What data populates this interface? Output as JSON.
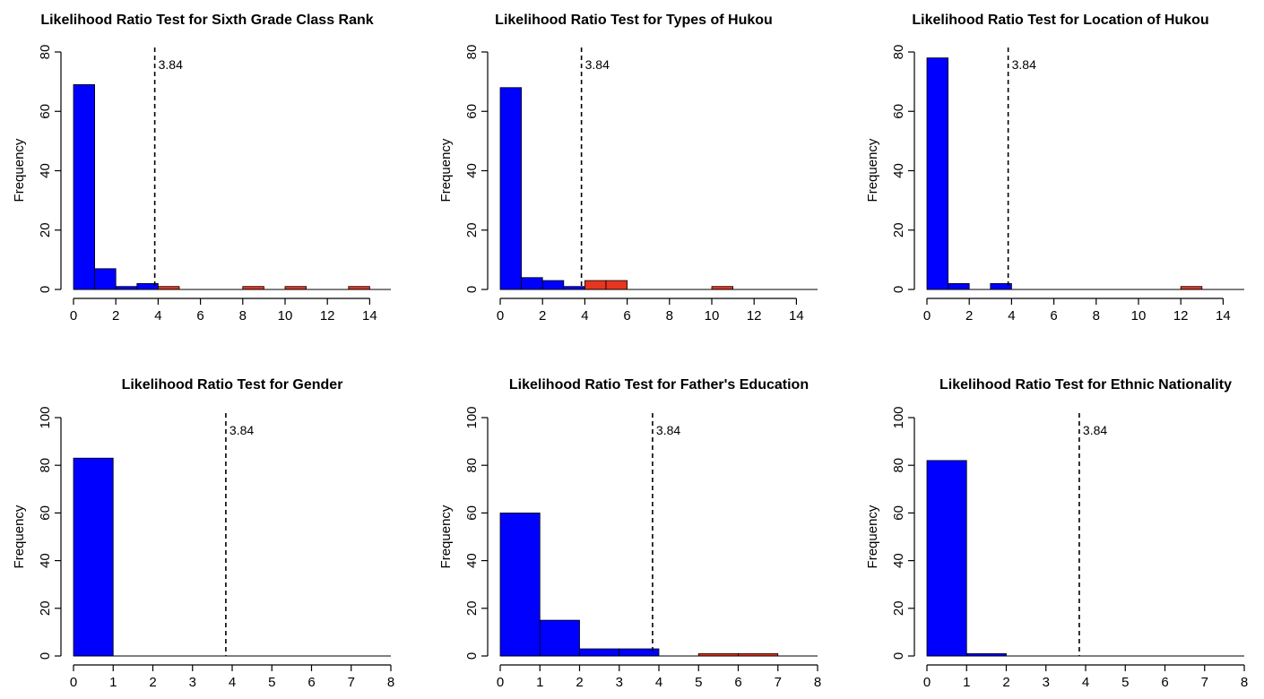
{
  "chart_data": [
    {
      "type": "bar",
      "title": "Likelihood Ratio Test for Sixth Grade Class Rank",
      "xlabel": "",
      "ylabel": "Frequency",
      "xlim": [
        0,
        15
      ],
      "ylim": [
        0,
        80
      ],
      "xticks": [
        "0",
        "2",
        "4",
        "6",
        "8",
        "10",
        "12",
        "14"
      ],
      "yticks": [
        "0",
        "20",
        "40",
        "60",
        "80"
      ],
      "bin_width": 1,
      "bins": [
        {
          "x0": 0,
          "x1": 1,
          "count": 69,
          "color": "blue"
        },
        {
          "x0": 1,
          "x1": 2,
          "count": 7,
          "color": "blue"
        },
        {
          "x0": 2,
          "x1": 3,
          "count": 1,
          "color": "blue"
        },
        {
          "x0": 3,
          "x1": 4,
          "count": 2,
          "color": "blue"
        },
        {
          "x0": 4,
          "x1": 5,
          "count": 1,
          "color": "red"
        },
        {
          "x0": 8,
          "x1": 9,
          "count": 1,
          "color": "red"
        },
        {
          "x0": 10,
          "x1": 11,
          "count": 1,
          "color": "red"
        },
        {
          "x0": 13,
          "x1": 14,
          "count": 1,
          "color": "red"
        }
      ],
      "critical_value": 3.84,
      "critical_label": "3.84"
    },
    {
      "type": "bar",
      "title": "Likelihood Ratio Test for Types of Hukou",
      "xlabel": "",
      "ylabel": "Frequency",
      "xlim": [
        0,
        15
      ],
      "ylim": [
        0,
        80
      ],
      "xticks": [
        "0",
        "2",
        "4",
        "6",
        "8",
        "10",
        "12",
        "14"
      ],
      "yticks": [
        "0",
        "20",
        "40",
        "60",
        "80"
      ],
      "bin_width": 1,
      "bins": [
        {
          "x0": 0,
          "x1": 1,
          "count": 68,
          "color": "blue"
        },
        {
          "x0": 1,
          "x1": 2,
          "count": 4,
          "color": "blue"
        },
        {
          "x0": 2,
          "x1": 3,
          "count": 3,
          "color": "blue"
        },
        {
          "x0": 3,
          "x1": 4,
          "count": 1,
          "color": "blue"
        },
        {
          "x0": 4,
          "x1": 5,
          "count": 3,
          "color": "red"
        },
        {
          "x0": 5,
          "x1": 6,
          "count": 3,
          "color": "red"
        },
        {
          "x0": 10,
          "x1": 11,
          "count": 1,
          "color": "red"
        }
      ],
      "critical_value": 3.84,
      "critical_label": "3.84"
    },
    {
      "type": "bar",
      "title": "Likelihood Ratio Test for Location of Hukou",
      "xlabel": "",
      "ylabel": "Frequency",
      "xlim": [
        0,
        15
      ],
      "ylim": [
        0,
        80
      ],
      "xticks": [
        "0",
        "2",
        "4",
        "6",
        "8",
        "10",
        "12",
        "14"
      ],
      "yticks": [
        "0",
        "20",
        "40",
        "60",
        "80"
      ],
      "bin_width": 1,
      "bins": [
        {
          "x0": 0,
          "x1": 1,
          "count": 78,
          "color": "blue"
        },
        {
          "x0": 1,
          "x1": 2,
          "count": 2,
          "color": "blue"
        },
        {
          "x0": 3,
          "x1": 4,
          "count": 2,
          "color": "blue"
        },
        {
          "x0": 12,
          "x1": 13,
          "count": 1,
          "color": "red"
        }
      ],
      "critical_value": 3.84,
      "critical_label": "3.84"
    },
    {
      "type": "bar",
      "title": "Likelihood Ratio Test for Gender",
      "xlabel": "",
      "ylabel": "Frequency",
      "xlim": [
        0,
        8
      ],
      "ylim": [
        0,
        100
      ],
      "xticks": [
        "0",
        "1",
        "2",
        "3",
        "4",
        "5",
        "6",
        "7",
        "8"
      ],
      "yticks": [
        "0",
        "20",
        "40",
        "60",
        "80",
        "100"
      ],
      "bin_width": 1,
      "bins": [
        {
          "x0": 0,
          "x1": 1,
          "count": 83,
          "color": "blue"
        }
      ],
      "critical_value": 3.84,
      "critical_label": "3.84"
    },
    {
      "type": "bar",
      "title": "Likelihood Ratio Test for Father's Education",
      "xlabel": "",
      "ylabel": "Frequency",
      "xlim": [
        0,
        8
      ],
      "ylim": [
        0,
        100
      ],
      "xticks": [
        "0",
        "1",
        "2",
        "3",
        "4",
        "5",
        "6",
        "7",
        "8"
      ],
      "yticks": [
        "0",
        "20",
        "40",
        "60",
        "80",
        "100"
      ],
      "bin_width": 1,
      "bins": [
        {
          "x0": 0,
          "x1": 1,
          "count": 60,
          "color": "blue"
        },
        {
          "x0": 1,
          "x1": 2,
          "count": 15,
          "color": "blue"
        },
        {
          "x0": 2,
          "x1": 3,
          "count": 3,
          "color": "blue"
        },
        {
          "x0": 3,
          "x1": 4,
          "count": 3,
          "color": "blue"
        },
        {
          "x0": 5,
          "x1": 6,
          "count": 1,
          "color": "red"
        },
        {
          "x0": 6,
          "x1": 7,
          "count": 1,
          "color": "red"
        }
      ],
      "critical_value": 3.84,
      "critical_label": "3.84"
    },
    {
      "type": "bar",
      "title": "Likelihood Ratio Test for Ethnic Nationality",
      "xlabel": "",
      "ylabel": "Frequency",
      "xlim": [
        0,
        8
      ],
      "ylim": [
        0,
        100
      ],
      "xticks": [
        "0",
        "1",
        "2",
        "3",
        "4",
        "5",
        "6",
        "7",
        "8"
      ],
      "yticks": [
        "0",
        "20",
        "40",
        "60",
        "80",
        "100"
      ],
      "bin_width": 1,
      "bins": [
        {
          "x0": 0,
          "x1": 1,
          "count": 82,
          "color": "blue"
        },
        {
          "x0": 1,
          "x1": 2,
          "count": 1,
          "color": "blue"
        }
      ],
      "critical_value": 3.84,
      "critical_label": "3.84"
    }
  ],
  "colors": {
    "below_critical": "#0000ff",
    "above_critical": "#e8351f",
    "axis": "#000000",
    "background": "#ffffff"
  }
}
